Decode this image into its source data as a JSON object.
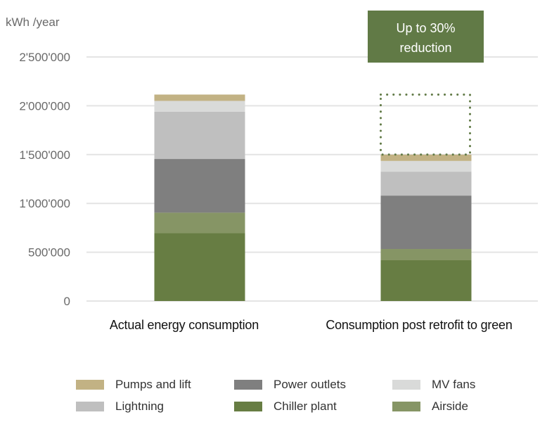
{
  "chart_data": {
    "type": "bar",
    "stacked": true,
    "title": "",
    "ylabel": "kWh /year",
    "xlabel": "",
    "ylim": [
      0,
      2500000
    ],
    "yticks": [
      0,
      500000,
      1000000,
      1500000,
      2000000,
      2500000
    ],
    "ytick_labels": [
      "0",
      "500'000",
      "1'000'000",
      "1'500'000",
      "2'000'000",
      "2'500'000"
    ],
    "grid": true,
    "categories": [
      "Actual energy consumption",
      "Consumption post retrofit to green"
    ],
    "series": [
      {
        "name": "Chiller plant",
        "color": "#677d43",
        "values": [
          695000,
          418000
        ]
      },
      {
        "name": "Airside",
        "color": "#869565",
        "values": [
          210000,
          115000
        ]
      },
      {
        "name": "Power outlets",
        "color": "#7f7f7f",
        "values": [
          550000,
          547000
        ]
      },
      {
        "name": "Lightning",
        "color": "#bfbfbf",
        "values": [
          485000,
          245000
        ]
      },
      {
        "name": "MV fans",
        "color": "#d9dad9",
        "values": [
          110000,
          110000
        ]
      },
      {
        "name": "Pumps and lift",
        "color": "#c2b284",
        "values": [
          65000,
          65000
        ]
      }
    ],
    "annotation": {
      "text_line1": "Up to 30%",
      "text_line2": "reduction",
      "color": "#617a46",
      "reduction_from": 2115000,
      "reduction_to": 1500000,
      "category_index": 1
    },
    "legend": {
      "placement": "bottom",
      "order": [
        "Pumps and lift",
        "Power outlets",
        "MV fans",
        "Lightning",
        "Chiller plant",
        "Airside"
      ]
    }
  }
}
